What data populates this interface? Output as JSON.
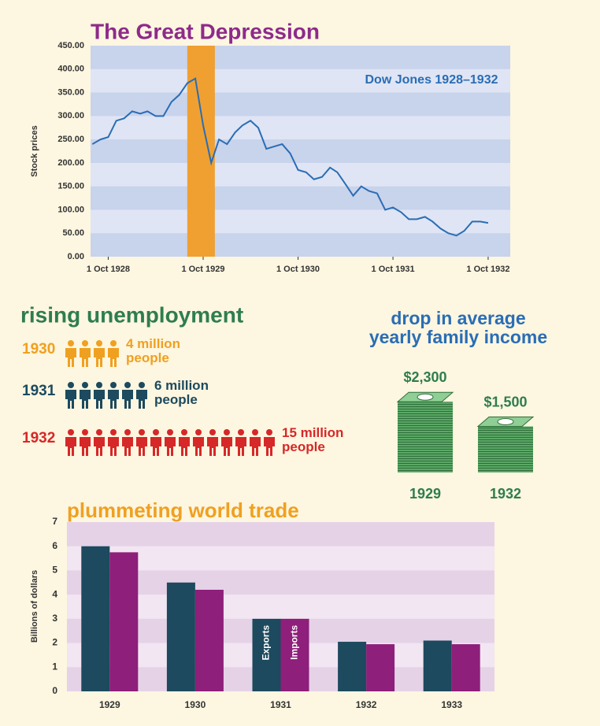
{
  "chart_data": [
    {
      "type": "line",
      "title": "The Great Depression",
      "annotation": "Dow Jones 1928–1932",
      "y_label": "Stock prices",
      "x": [
        "1928-08-01",
        "1928-09-01",
        "1928-10-01",
        "1928-11-01",
        "1928-12-01",
        "1929-01-01",
        "1929-02-01",
        "1929-03-01",
        "1929-04-01",
        "1929-05-01",
        "1929-06-01",
        "1929-07-01",
        "1929-08-01",
        "1929-09-01",
        "1929-10-01",
        "1929-11-01",
        "1929-12-01",
        "1930-01-01",
        "1930-02-01",
        "1930-03-01",
        "1930-04-01",
        "1930-05-01",
        "1930-06-01",
        "1930-07-01",
        "1930-08-01",
        "1930-09-01",
        "1930-10-01",
        "1930-11-01",
        "1930-12-01",
        "1931-01-01",
        "1931-02-01",
        "1931-03-01",
        "1931-04-01",
        "1931-05-01",
        "1931-06-01",
        "1931-07-01",
        "1931-08-01",
        "1931-09-01",
        "1931-10-01",
        "1931-11-01",
        "1931-12-01",
        "1932-01-01",
        "1932-02-01",
        "1932-03-01",
        "1932-04-01",
        "1932-05-01",
        "1932-06-01",
        "1932-07-01",
        "1932-08-01",
        "1932-09-01",
        "1932-10-01"
      ],
      "values": [
        240,
        250,
        255,
        290,
        295,
        310,
        305,
        310,
        300,
        300,
        330,
        345,
        370,
        380,
        280,
        200,
        250,
        240,
        265,
        280,
        290,
        275,
        230,
        235,
        240,
        220,
        185,
        180,
        165,
        170,
        190,
        180,
        155,
        130,
        150,
        140,
        135,
        100,
        105,
        95,
        80,
        80,
        85,
        75,
        60,
        50,
        45,
        55,
        75,
        75,
        72
      ],
      "color": "#2a6db5",
      "xlim": [
        "1928-07-25",
        "1932-12-25"
      ],
      "xticks": [
        {
          "value": "1928-10-01",
          "label": "1 Oct 1928"
        },
        {
          "value": "1929-10-01",
          "label": "1 Oct 1929"
        },
        {
          "value": "1930-10-01",
          "label": "1 Oct 1930"
        },
        {
          "value": "1931-10-01",
          "label": "1 Oct 1931"
        },
        {
          "value": "1932-10-01",
          "label": "1 Oct 1932"
        }
      ],
      "ylim": [
        0,
        450
      ],
      "yticks": [
        {
          "value": 0,
          "label": "0.00"
        },
        {
          "value": 50,
          "label": "50.00"
        },
        {
          "value": 100,
          "label": "100.00"
        },
        {
          "value": 150,
          "label": "150.00"
        },
        {
          "value": 200,
          "label": "200.00"
        },
        {
          "value": 250,
          "label": "250.00"
        },
        {
          "value": 300,
          "label": "300.00"
        },
        {
          "value": 350,
          "label": "350.00"
        },
        {
          "value": 400,
          "label": "400.00"
        },
        {
          "value": 450,
          "label": "450.00"
        }
      ],
      "highlight": {
        "x": [
          "1929-08-01",
          "1929-11-15"
        ],
        "color": "#f0a030"
      }
    },
    {
      "type": "pictogram",
      "title": "rising unemployment",
      "categories": [
        "1930",
        "1931",
        "1932"
      ],
      "values": [
        4,
        6,
        15
      ],
      "value_labels": [
        "4 million people",
        "6 million people",
        "15 million people"
      ],
      "colors": [
        "#f0a020",
        "#1d4a5e",
        "#d62828"
      ]
    },
    {
      "type": "stack",
      "title": "drop in average yearly family income",
      "categories": [
        "1929",
        "1932"
      ],
      "values": [
        2300,
        1500
      ],
      "value_labels": [
        "$2,300",
        "$1,500"
      ],
      "color": "#4f9a5a"
    },
    {
      "type": "bar",
      "title": "plummeting world trade",
      "y_label": "Billions of dollars",
      "categories": [
        "1929",
        "1930",
        "1931",
        "1932",
        "1933"
      ],
      "series": [
        {
          "name": "Exports",
          "color": "#1d4a5e",
          "values": [
            6,
            4.5,
            3,
            2.05,
            2.1
          ]
        },
        {
          "name": "Imports",
          "color": "#8e1f7a",
          "values": [
            5.75,
            4.2,
            3,
            1.95,
            1.95
          ]
        }
      ],
      "ylim": [
        0,
        7
      ],
      "yticks": [
        0,
        1,
        2,
        3,
        4,
        5,
        6,
        7
      ]
    }
  ]
}
